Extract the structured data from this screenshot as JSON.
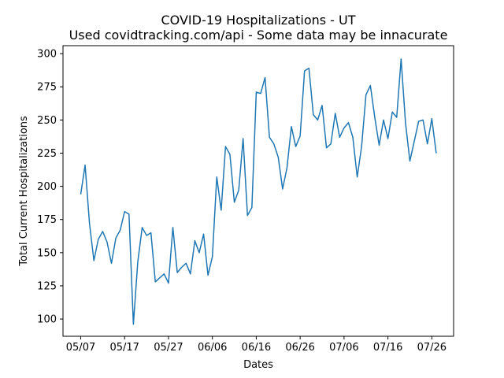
{
  "chart_data": {
    "type": "line",
    "title": "COVID-19 Hospitalizations - UT",
    "subtitle": "Used covidtracking.com/api - Some data may be innacurate",
    "xlabel": "Dates",
    "ylabel": "Total Current Hospitalizations",
    "x_ticks": [
      "05/07",
      "05/17",
      "05/27",
      "06/06",
      "06/16",
      "06/26",
      "07/06",
      "07/16",
      "07/26"
    ],
    "y_ticks": [
      100,
      125,
      150,
      175,
      200,
      225,
      250,
      275,
      300
    ],
    "ylim": [
      87,
      306
    ],
    "start_date": "05/07",
    "series": [
      {
        "name": "",
        "color": "#1f77b4",
        "values": [
          194,
          216,
          172,
          144,
          160,
          166,
          158,
          142,
          161,
          167,
          181,
          179,
          96,
          143,
          169,
          163,
          165,
          128,
          131,
          134,
          127,
          169,
          135,
          139,
          142,
          134,
          159,
          150,
          164,
          133,
          147,
          207,
          182,
          230,
          224,
          188,
          197,
          236,
          178,
          184,
          271,
          270,
          282,
          237,
          232,
          222,
          198,
          214,
          245,
          230,
          238,
          287,
          289,
          254,
          250,
          261,
          229,
          232,
          255,
          237,
          244,
          248,
          237,
          207,
          230,
          269,
          276,
          252,
          231,
          250,
          236,
          256,
          252,
          296,
          248,
          219,
          234,
          249,
          250,
          232,
          251,
          225
        ]
      }
    ],
    "grid": false,
    "legend": "none"
  }
}
